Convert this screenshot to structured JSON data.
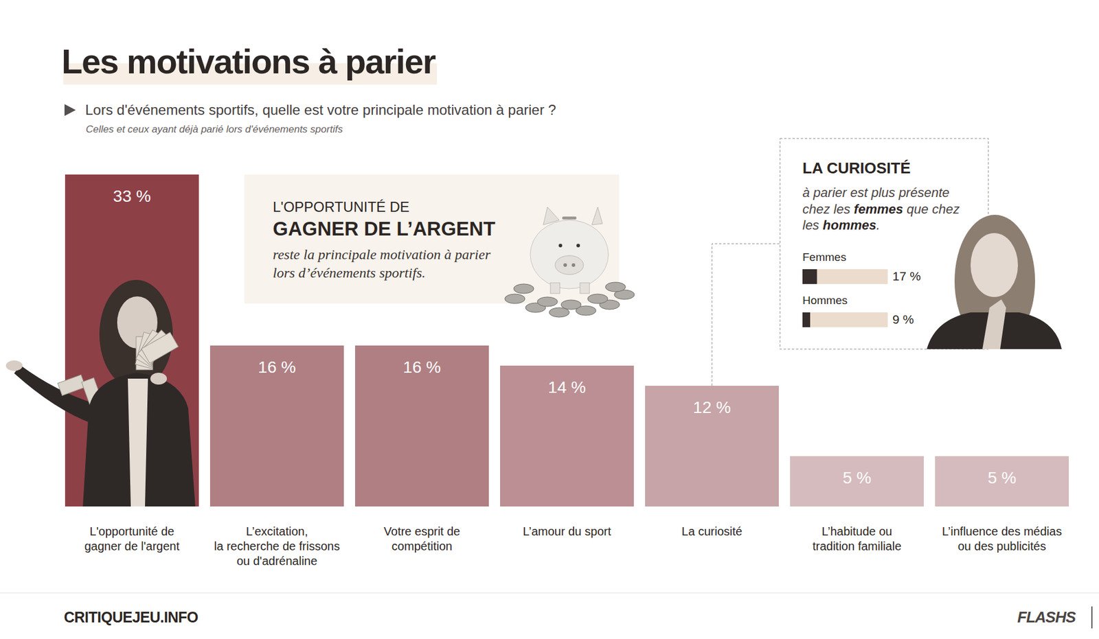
{
  "chart_data": [
    {
      "type": "bar",
      "title": "Les motivations à parier",
      "subtitle": "Lors d'événements sportifs, quelle est votre principale motivation à parier ?",
      "annotations": [
        "Celles et ceux ayant déjà parié lors d'événements sportifs",
        "L'OPPORTUNITÉ DE",
        "GAGNER DE L’ARGENT",
        "reste la principale motivation à parier\nlors d’événements sportifs."
      ],
      "categories": [
        "L'opportunité de\ngagner de l'argent",
        "L’excitation,\nla recherche de frissons\nou d'adrénaline",
        "Votre esprit de\ncompétition",
        "L’amour du sport",
        "La curiosité",
        "L’habitude ou\ntradition familiale",
        "L’influence des médias\nou des publicités"
      ],
      "values": [
        33,
        16,
        16,
        14,
        12,
        5,
        5
      ],
      "value_labels": [
        "33 %",
        "16 %",
        "16 %",
        "14 %",
        "12 %",
        "5 %",
        "5 %"
      ],
      "colors": [
        "#8e4047",
        "#af7f83",
        "#af7f83",
        "#bb8f93",
        "#c6a4a7",
        "#d5bbbd",
        "#d5bbbd"
      ],
      "ylim": [
        0,
        33
      ],
      "tick_labels": false,
      "data_labels": true
    },
    {
      "type": "bar",
      "orientation": "horizontal",
      "title": "LA CURIOSITÉ",
      "annotations": [
        "à parier est plus présente\nchez les ",
        "femmes",
        " que chez\nles ",
        "hommes",
        "."
      ],
      "categories": [
        "Femmes",
        "Hommes"
      ],
      "values": [
        17,
        9
      ],
      "value_labels": [
        "17 %",
        "9 %"
      ],
      "xlim": [
        0,
        100
      ],
      "color": "#362e2c",
      "tick_labels": false,
      "data_labels": true
    }
  ],
  "footer": {
    "source": "CRITIQUEJEU.INFO",
    "brand": "FLASHS"
  }
}
